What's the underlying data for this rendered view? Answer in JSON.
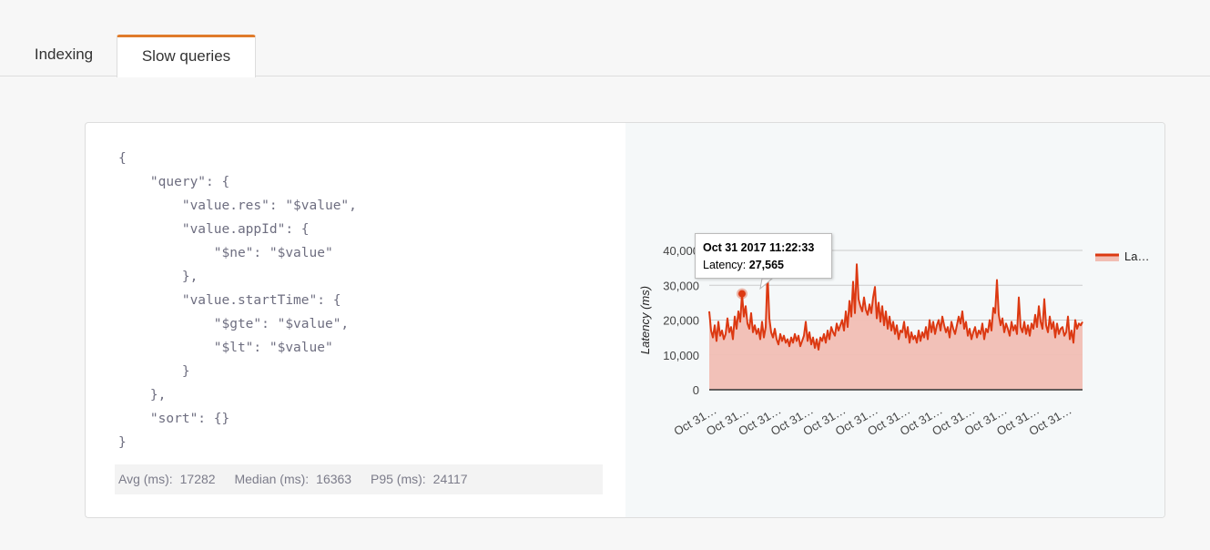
{
  "tabs": [
    {
      "label": "Indexing",
      "active": false
    },
    {
      "label": "Slow queries",
      "active": true
    }
  ],
  "query_code": "{\n    \"query\": {\n        \"value.res\": \"$value\",\n        \"value.appId\": {\n            \"$ne\": \"$value\"\n        },\n        \"value.startTime\": {\n            \"$gte\": \"$value\",\n            \"$lt\": \"$value\"\n        }\n    },\n    \"sort\": {}\n}",
  "stats": {
    "avg_label": "Avg (ms):",
    "avg_value": "17282",
    "median_label": "Median (ms):",
    "median_value": "16363",
    "p95_label": "P95 (ms):",
    "p95_value": "24117"
  },
  "tooltip": {
    "title": "Oct 31 2017 11:22:33",
    "series_label": "Latency:",
    "value": "27,565"
  },
  "colors": {
    "accent_tab": "#e07b2b",
    "line": "#dc3912",
    "area": "#f1beb4"
  },
  "chart_data": {
    "type": "area",
    "ylabel": "Latency (ms)",
    "ylim": [
      0,
      40000
    ],
    "yticks": [
      "0",
      "10,000",
      "20,000",
      "30,000",
      "40,000"
    ],
    "x_tick_labels": [
      "Oct 31…",
      "Oct 31…",
      "Oct 31…",
      "Oct 31…",
      "Oct 31…",
      "Oct 31…",
      "Oct 31…",
      "Oct 31…",
      "Oct 31…",
      "Oct 31…",
      "Oct 31…",
      "Oct 31…"
    ],
    "legend": {
      "label": "La…",
      "position": "right"
    },
    "highlight_index": 18,
    "series": [
      {
        "name": "Latency",
        "values": [
          22500,
          17000,
          15000,
          18500,
          14000,
          19500,
          15500,
          17000,
          14500,
          16000,
          20500,
          16500,
          18000,
          14500,
          21000,
          17500,
          22500,
          19500,
          27565,
          21000,
          24000,
          19000,
          17500,
          22000,
          16500,
          18500,
          16000,
          17500,
          14500,
          19500,
          15000,
          18000,
          33500,
          20500,
          16500,
          15000,
          17500,
          14500,
          13000,
          16000,
          14000,
          15500,
          13500,
          14500,
          12500,
          15000,
          13500,
          16000,
          14000,
          15500,
          12500,
          14000,
          15500,
          19500,
          14000,
          16500,
          13000,
          15000,
          12000,
          14500,
          11500,
          15000,
          14000,
          16000,
          13500,
          17000,
          14500,
          18000,
          16500,
          15500,
          19000,
          17000,
          18500,
          20000,
          17000,
          22500,
          18000,
          25500,
          21000,
          31000,
          22000,
          36000,
          26000,
          24000,
          22500,
          26500,
          23000,
          21500,
          24500,
          22000,
          26500,
          29500,
          20500,
          25000,
          19500,
          24000,
          18500,
          22500,
          17500,
          21000,
          17000,
          19500,
          16000,
          18500,
          14500,
          17000,
          16500,
          19500,
          15000,
          18000,
          13500,
          16500,
          14500,
          15500,
          13500,
          17000,
          14000,
          16500,
          15000,
          18000,
          14500,
          20000,
          16500,
          19500,
          16000,
          18500,
          20000,
          17000,
          21000,
          18500,
          16500,
          18000,
          15000,
          19500,
          17500,
          16000,
          18500,
          21000,
          19000,
          22500,
          17500,
          19500,
          15500,
          17500,
          14500,
          16500,
          18000,
          15000,
          17000,
          16000,
          19000,
          14500,
          17500,
          16500,
          20000,
          17000,
          23500,
          22000,
          31500,
          21500,
          18500,
          20500,
          16500,
          19000,
          17500,
          15500,
          19500,
          17000,
          18500,
          16000,
          26500,
          18000,
          16500,
          19500,
          16000,
          18500,
          15500,
          19000,
          17500,
          21500,
          18000,
          24000,
          19500,
          17500,
          26000,
          18500,
          16500,
          21000,
          17500,
          19500,
          15000,
          19000,
          16000,
          17500,
          18000,
          15500,
          16500,
          21000,
          14500,
          17000,
          13500,
          20000,
          17500,
          19000,
          18500,
          19500
        ]
      }
    ]
  }
}
